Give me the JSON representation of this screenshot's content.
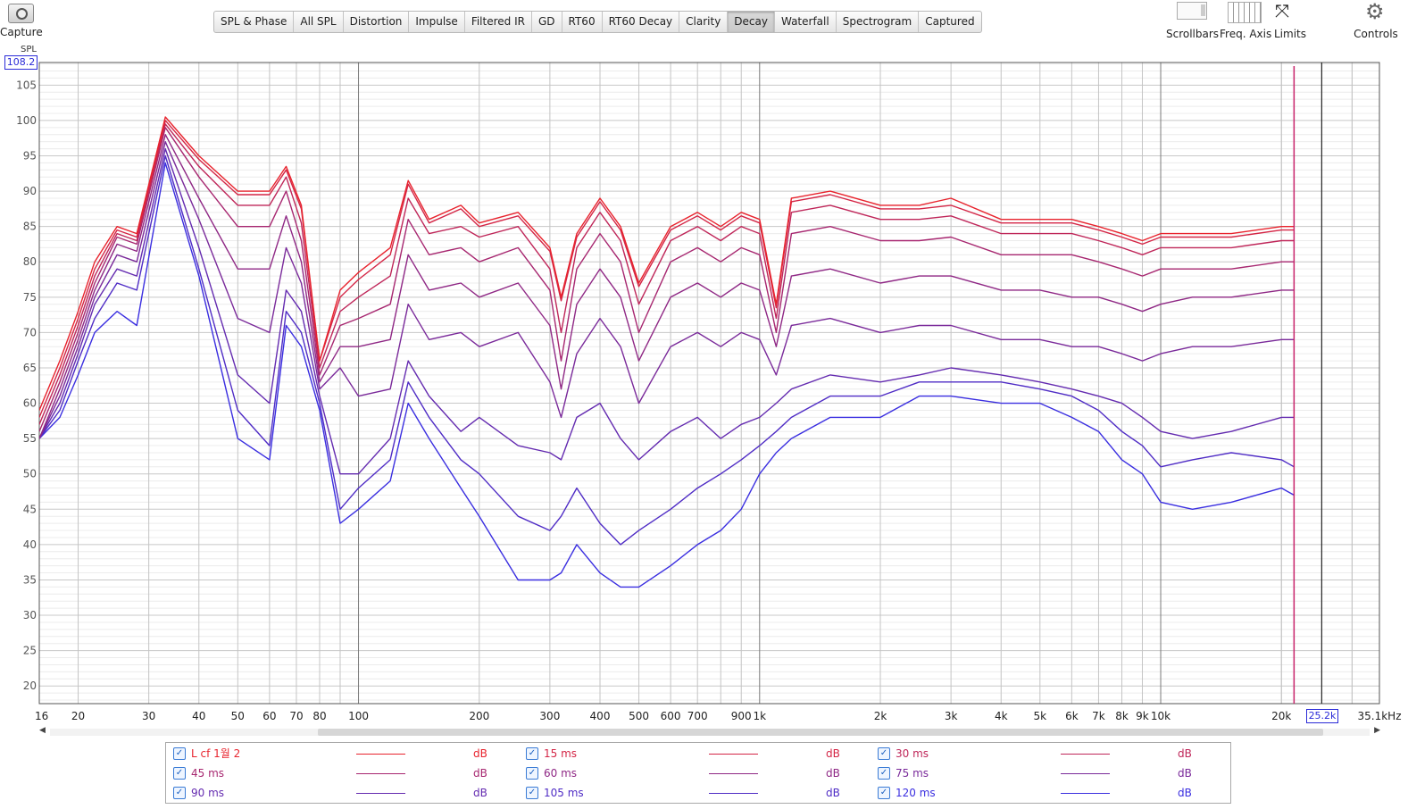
{
  "toolbar": {
    "capture_label": "Capture",
    "tabs": [
      {
        "label": "SPL & Phase"
      },
      {
        "label": "All SPL"
      },
      {
        "label": "Distortion"
      },
      {
        "label": "Impulse"
      },
      {
        "label": "Filtered IR"
      },
      {
        "label": "GD"
      },
      {
        "label": "RT60"
      },
      {
        "label": "RT60 Decay"
      },
      {
        "label": "Clarity"
      },
      {
        "label": "Decay"
      },
      {
        "label": "Waterfall"
      },
      {
        "label": "Spectrogram"
      },
      {
        "label": "Captured"
      }
    ],
    "active_tab": "Decay",
    "right_tools": [
      {
        "label": "Scrollbars",
        "icon": "scrollbars-icon"
      },
      {
        "label": "Freq. Axis",
        "icon": "freq-axis-icon"
      },
      {
        "label": "Limits",
        "icon": "limits-icon"
      },
      {
        "label": "Controls",
        "icon": "gear-icon"
      }
    ]
  },
  "axis": {
    "y_name": "SPL",
    "y_top_value": "108.2",
    "x_cursor_value": "25.2k"
  },
  "chart_data": {
    "type": "line",
    "x_scale": "log",
    "xlim": [
      16,
      35100
    ],
    "ylim": [
      17.5,
      108.2
    ],
    "grid": true,
    "ylabel": "SPL",
    "x_tick_labels": [
      {
        "v": 16,
        "t": "16"
      },
      {
        "v": 20,
        "t": "20"
      },
      {
        "v": 30,
        "t": "30"
      },
      {
        "v": 40,
        "t": "40"
      },
      {
        "v": 50,
        "t": "50"
      },
      {
        "v": 60,
        "t": "60"
      },
      {
        "v": 70,
        "t": "70"
      },
      {
        "v": 80,
        "t": "80"
      },
      {
        "v": 100,
        "t": "100"
      },
      {
        "v": 200,
        "t": "200"
      },
      {
        "v": 300,
        "t": "300"
      },
      {
        "v": 400,
        "t": "400"
      },
      {
        "v": 500,
        "t": "500"
      },
      {
        "v": 600,
        "t": "600"
      },
      {
        "v": 700,
        "t": "700"
      },
      {
        "v": 900,
        "t": "900"
      },
      {
        "v": 1000,
        "t": "1k"
      },
      {
        "v": 2000,
        "t": "2k"
      },
      {
        "v": 3000,
        "t": "3k"
      },
      {
        "v": 4000,
        "t": "4k"
      },
      {
        "v": 5000,
        "t": "5k"
      },
      {
        "v": 6000,
        "t": "6k"
      },
      {
        "v": 7000,
        "t": "7k"
      },
      {
        "v": 8000,
        "t": "8k"
      },
      {
        "v": 9000,
        "t": "9k"
      },
      {
        "v": 10000,
        "t": "10k"
      },
      {
        "v": 20000,
        "t": "20k"
      },
      {
        "v": 35100,
        "t": "35.1kHz"
      }
    ],
    "y_ticks": [
      20,
      25,
      30,
      35,
      40,
      45,
      50,
      55,
      60,
      65,
      70,
      75,
      80,
      85,
      90,
      95,
      100,
      105
    ],
    "x": [
      16,
      18,
      20,
      22,
      25,
      28,
      33,
      40,
      50,
      60,
      66,
      72,
      80,
      90,
      100,
      120,
      133,
      150,
      180,
      200,
      250,
      300,
      320,
      350,
      400,
      450,
      500,
      600,
      700,
      800,
      900,
      1000,
      1100,
      1200,
      1500,
      2000,
      2500,
      3000,
      4000,
      5000,
      6000,
      7000,
      8000,
      9000,
      10000,
      12000,
      15000,
      20000,
      21500
    ],
    "series": [
      {
        "name": "L cf 1월 2",
        "color": "#e8232d",
        "values": [
          59,
          66,
          73,
          80,
          85,
          84,
          100.5,
          95,
          90,
          90,
          93.5,
          88,
          66,
          76,
          78.5,
          82,
          91.5,
          86,
          88,
          85.5,
          87,
          82,
          75,
          84,
          89,
          85,
          77,
          85,
          87,
          85,
          87,
          86,
          74,
          89,
          90,
          88,
          88,
          89,
          86,
          86,
          86,
          85,
          84,
          83,
          84,
          84,
          84,
          85,
          85
        ]
      },
      {
        "name": "15 ms",
        "color": "#d42545",
        "values": [
          58,
          65,
          72,
          79,
          84.5,
          83.5,
          100,
          94.5,
          89.5,
          89.5,
          93,
          87.5,
          66,
          75,
          77.5,
          81,
          91,
          85.5,
          87.5,
          85,
          86.5,
          81.5,
          74.5,
          83.5,
          88.5,
          84.5,
          76.5,
          84.5,
          86.5,
          84.5,
          86.5,
          85.5,
          73.5,
          88.5,
          89.5,
          87.5,
          87.5,
          88,
          85.5,
          85.5,
          85.5,
          84.5,
          83.5,
          82.5,
          83.5,
          83.5,
          83.5,
          84.5,
          84.5
        ]
      },
      {
        "name": "30 ms",
        "color": "#bf2659",
        "values": [
          57,
          64,
          71,
          78,
          84,
          83,
          99.5,
          93.5,
          88,
          88,
          92,
          85.5,
          65,
          73,
          75,
          78,
          89,
          84,
          85,
          83.5,
          85,
          79,
          70,
          82,
          87,
          83,
          74,
          83,
          85,
          83,
          85,
          84,
          72,
          87,
          88,
          86,
          86,
          86.5,
          84,
          84,
          84,
          83,
          82,
          81,
          82,
          82,
          82,
          83,
          83
        ]
      },
      {
        "name": "45 ms",
        "color": "#a72770",
        "values": [
          56,
          63,
          70,
          77,
          83.5,
          82.5,
          99,
          92,
          85,
          85,
          90,
          83,
          64,
          71,
          72,
          74,
          86,
          81,
          82,
          80,
          82,
          76,
          66,
          79,
          84,
          80,
          70,
          80,
          82,
          80,
          82,
          81,
          70,
          84,
          85,
          83,
          83,
          83.5,
          81,
          81,
          81,
          80,
          79,
          78,
          79,
          79,
          79,
          80,
          80
        ]
      },
      {
        "name": "60 ms",
        "color": "#8f2885",
        "values": [
          55,
          62,
          69,
          76,
          82.5,
          81.5,
          98,
          89,
          79,
          79,
          86.5,
          80,
          63,
          68,
          68,
          69,
          81,
          76,
          77,
          75,
          77,
          71,
          62,
          74,
          79,
          75,
          66,
          75,
          77,
          75,
          77,
          76,
          68,
          78,
          79,
          77,
          78,
          78,
          76,
          76,
          75,
          75,
          74,
          73,
          74,
          75,
          75,
          76,
          76
        ]
      },
      {
        "name": "75 ms",
        "color": "#7a2a9a",
        "values": [
          55,
          61,
          68,
          75,
          81,
          80,
          97,
          86,
          72,
          70,
          82,
          77,
          62,
          65,
          61,
          62,
          74,
          69,
          70,
          68,
          70,
          63,
          58,
          67,
          72,
          68,
          60,
          68,
          70,
          68,
          70,
          69,
          64,
          71,
          72,
          70,
          71,
          71,
          69,
          69,
          68,
          68,
          67,
          66,
          67,
          68,
          68,
          69,
          69
        ]
      },
      {
        "name": "90 ms",
        "color": "#642bb0",
        "values": [
          55,
          60,
          67,
          74,
          79,
          78,
          96,
          82,
          64,
          60,
          76,
          73,
          61,
          50,
          50,
          55,
          66,
          61,
          56,
          58,
          54,
          53,
          52,
          58,
          60,
          55,
          52,
          56,
          58,
          55,
          57,
          58,
          60,
          62,
          64,
          63,
          64,
          65,
          64,
          63,
          62,
          61,
          60,
          58,
          56,
          55,
          56,
          58,
          58
        ]
      },
      {
        "name": "105 ms",
        "color": "#4f2cc5",
        "values": [
          55,
          59,
          66,
          72,
          77,
          76,
          95,
          79,
          59,
          54,
          73,
          70,
          60,
          45,
          48,
          52,
          63,
          58,
          52,
          50,
          44,
          42,
          44,
          48,
          43,
          40,
          42,
          45,
          48,
          50,
          52,
          54,
          56,
          58,
          61,
          61,
          63,
          63,
          63,
          62,
          61,
          59,
          56,
          54,
          51,
          52,
          53,
          52,
          51
        ]
      },
      {
        "name": "120 ms",
        "color": "#3a2ee0",
        "values": [
          55,
          58,
          64,
          70,
          73,
          71,
          94,
          78,
          55,
          52,
          71,
          68,
          59,
          43,
          45,
          49,
          60,
          55,
          48,
          44,
          35,
          35,
          36,
          40,
          36,
          34,
          34,
          37,
          40,
          42,
          45,
          50,
          53,
          55,
          58,
          58,
          61,
          61,
          60,
          60,
          58,
          56,
          52,
          50,
          46,
          45,
          46,
          48,
          47
        ]
      }
    ],
    "marker_x": 21500
  }
}
